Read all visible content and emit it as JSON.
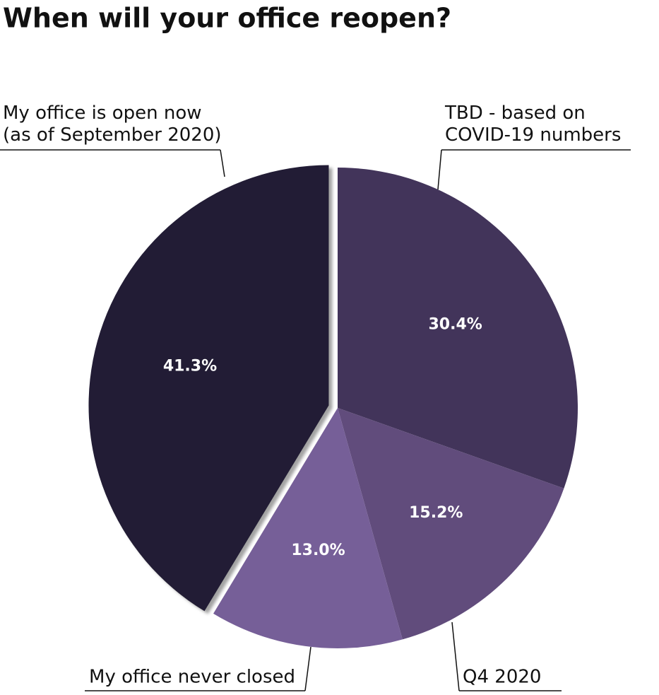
{
  "chart_data": {
    "type": "pie",
    "title": "When will your office reopen?",
    "categories": [
      "TBD - based on\nCOVID-19 numbers",
      "Q4 2020",
      "My office never closed",
      "My office is open now\n(as of September 2020)"
    ],
    "values": [
      30.4,
      15.2,
      13.0,
      41.3
    ],
    "value_labels": [
      "30.4%",
      "15.2%",
      "13.0%",
      "41.3%"
    ],
    "colors": [
      "#42345a",
      "#614c7c",
      "#765f98",
      "#221d35"
    ],
    "exploded": [
      false,
      false,
      false,
      true
    ]
  }
}
